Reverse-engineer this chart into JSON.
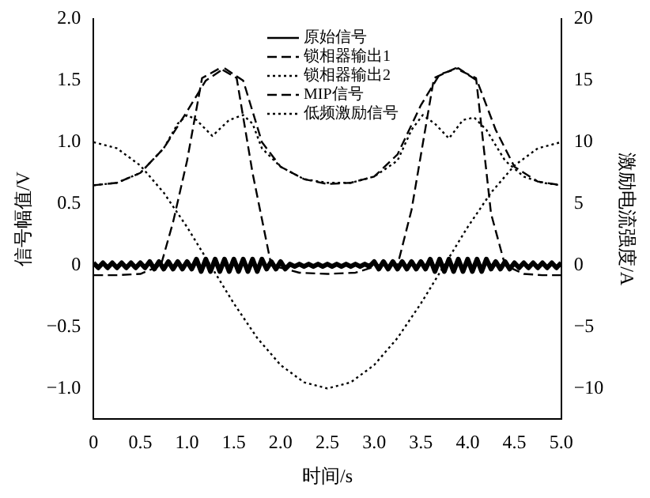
{
  "chart_data": {
    "type": "line",
    "xlabel": "时间/s",
    "ylabel": "信号幅值/V",
    "y2label": "激励电流强度/A",
    "xlim": [
      0,
      5
    ],
    "xticks": [
      0,
      0.5,
      {
        "value": 1,
        "label": "1.0"
      },
      1.5,
      {
        "value": 2,
        "label": "2.0"
      },
      2.5,
      {
        "value": 3,
        "label": "3.0"
      },
      3.5,
      {
        "value": 4,
        "label": "4.0"
      },
      4.5,
      {
        "value": 5,
        "label": "5.0"
      }
    ],
    "ylim": [
      -1.25,
      2.0
    ],
    "yticks": [
      {
        "value": -1,
        "label": "−1.0"
      },
      {
        "value": -0.5,
        "label": "−0.5"
      },
      0,
      0.5,
      {
        "value": 1,
        "label": "1.0"
      },
      1.5,
      {
        "value": 2,
        "label": "2.0"
      }
    ],
    "y2lim": [
      -12.5,
      20
    ],
    "y2ticks": [
      {
        "value": -10,
        "label": "−10"
      },
      {
        "value": -5,
        "label": "−5"
      },
      0,
      5,
      10,
      15,
      20
    ],
    "grid": false,
    "legend": "top",
    "marker": "none",
    "series": [
      {
        "name": "原始信号",
        "color": "#000000",
        "line_style": "solid",
        "x": [
          0,
          0.05,
          0.1,
          0.15,
          0.2,
          0.25,
          0.3,
          0.35,
          0.4,
          0.45,
          0.5,
          0.55,
          0.6,
          0.65,
          0.7,
          0.75,
          0.8,
          0.85,
          0.9,
          0.95,
          1,
          1.05,
          1.1,
          1.15,
          1.2,
          1.25,
          1.3,
          1.35,
          1.4,
          1.45,
          1.5,
          1.55,
          1.6,
          1.65,
          1.7,
          1.75,
          1.8,
          1.85,
          1.9,
          1.95,
          2,
          2.05,
          2.1,
          2.15,
          2.2,
          2.25,
          2.3,
          2.35,
          2.4,
          2.45,
          2.5,
          2.55,
          2.6,
          2.65,
          2.7,
          2.75,
          2.8,
          2.85,
          2.9,
          2.95,
          3,
          3.05,
          3.1,
          3.15,
          3.2,
          3.25,
          3.3,
          3.35,
          3.4,
          3.45,
          3.5,
          3.55,
          3.6,
          3.65,
          3.7,
          3.75,
          3.8,
          3.85,
          3.9,
          3.95,
          4,
          4.05,
          4.1,
          4.15,
          4.2,
          4.25,
          4.3,
          4.35,
          4.4,
          4.45,
          4.5,
          4.55,
          4.6,
          4.65,
          4.7,
          4.75,
          4.8,
          4.85,
          4.9,
          4.95,
          5
        ],
        "values": [
          0.02,
          -0.02,
          0.02,
          -0.02,
          0.02,
          -0.02,
          0.02,
          -0.02,
          0.02,
          -0.02,
          0.02,
          -0.02,
          0.03,
          -0.03,
          0.03,
          -0.03,
          0.03,
          -0.03,
          0.03,
          -0.03,
          0.03,
          -0.03,
          0.05,
          -0.05,
          0.05,
          -0.05,
          0.05,
          -0.05,
          0.05,
          -0.05,
          0.05,
          -0.05,
          0.05,
          -0.05,
          0.05,
          -0.05,
          0.05,
          -0.03,
          0.03,
          -0.03,
          0.03,
          -0.03,
          0.01,
          -0.01,
          0.01,
          -0.01,
          0.01,
          -0.01,
          0.01,
          -0.01,
          0.01,
          -0.01,
          0.01,
          -0.01,
          0.01,
          -0.01,
          0.01,
          -0.01,
          0.01,
          -0.01,
          0.03,
          -0.03,
          0.03,
          -0.03,
          0.03,
          -0.03,
          0.03,
          -0.03,
          0.03,
          -0.03,
          0.03,
          -0.03,
          0.05,
          -0.05,
          0.05,
          -0.05,
          0.05,
          -0.05,
          0.05,
          -0.05,
          0.05,
          -0.05,
          0.05,
          -0.05,
          0.05,
          -0.03,
          0.03,
          -0.03,
          0.03,
          -0.03,
          0.02,
          -0.02,
          0.02,
          -0.02,
          0.02,
          -0.02,
          0.02,
          -0.02,
          0.02,
          -0.02,
          0.02
        ]
      },
      {
        "name": "锁相器输出1",
        "color": "#000000",
        "line_style": "dashed",
        "x": [
          0,
          0.25,
          0.5,
          0.72,
          0.85,
          1,
          1.16,
          1.35,
          1.53,
          1.7,
          1.9,
          2.2,
          2.5,
          2.8,
          3.05,
          3.25,
          3.4,
          3.64,
          3.87,
          4.09,
          4.25,
          4.4,
          4.6,
          4.8,
          5
        ],
        "values": [
          -0.08,
          -0.08,
          -0.07,
          0,
          0.35,
          0.85,
          1.52,
          1.6,
          1.52,
          0.75,
          0,
          -0.06,
          -0.07,
          -0.06,
          0,
          0,
          0.45,
          1.52,
          1.6,
          1.52,
          0.42,
          0,
          -0.07,
          -0.08,
          -0.08
        ]
      },
      {
        "name": "锁相器输出2",
        "color": "#000000",
        "line_style": "dotted",
        "x": [
          0,
          0.25,
          0.5,
          0.75,
          0.9,
          1,
          1.1,
          1.27,
          1.45,
          1.6,
          1.7,
          1.8,
          2,
          2.25,
          2.5,
          2.75,
          3,
          3.25,
          3.4,
          3.52,
          3.65,
          3.8,
          3.95,
          4.07,
          4.2,
          4.4,
          4.6,
          4.8,
          5
        ],
        "values": [
          0.65,
          0.67,
          0.75,
          0.95,
          1.15,
          1.22,
          1.18,
          1.05,
          1.18,
          1.22,
          1.15,
          0.95,
          0.8,
          0.7,
          0.67,
          0.67,
          0.72,
          0.85,
          1.1,
          1.22,
          1.15,
          1.03,
          1.18,
          1.2,
          1.1,
          0.85,
          0.72,
          0.67,
          0.65
        ]
      },
      {
        "name": "MIP信号",
        "color": "#000000",
        "line_style": "dashed",
        "x": [
          0,
          0.25,
          0.5,
          0.75,
          1,
          1.2,
          1.4,
          1.6,
          1.8,
          2,
          2.25,
          2.5,
          2.75,
          3,
          3.25,
          3.5,
          3.7,
          3.9,
          4.1,
          4.3,
          4.5,
          4.75,
          5
        ],
        "values": [
          0.65,
          0.67,
          0.75,
          0.95,
          1.25,
          1.5,
          1.6,
          1.5,
          1.0,
          0.8,
          0.7,
          0.66,
          0.67,
          0.72,
          0.9,
          1.3,
          1.55,
          1.6,
          1.5,
          1.1,
          0.8,
          0.68,
          0.65
        ]
      },
      {
        "name": "低频激励信号",
        "color": "#000000",
        "line_style": "dotted",
        "axis": "y2",
        "x": [
          0,
          0.25,
          0.5,
          0.75,
          1,
          1.25,
          1.5,
          1.75,
          2,
          2.25,
          2.5,
          2.75,
          3,
          3.25,
          3.5,
          3.75,
          4,
          4.25,
          4.5,
          4.75,
          5
        ],
        "values": [
          10,
          9.5,
          8.1,
          5.9,
          3.1,
          0,
          -3.1,
          -5.9,
          -8.1,
          -9.5,
          -10,
          -9.5,
          -8.1,
          -5.9,
          -3.1,
          0,
          3.1,
          5.9,
          8.1,
          9.5,
          10
        ]
      }
    ]
  }
}
